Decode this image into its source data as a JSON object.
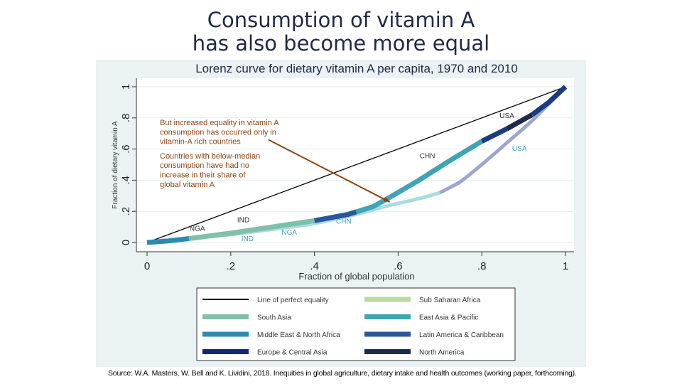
{
  "slide_title_line1": "Consumption of vitamin A",
  "slide_title_line2": "has also become more equal",
  "source": "Source: W.A. Masters, W. Bell and K. Lividini, 2018. Inequities in global agriculture, dietary intake and health outcomes (working paper, forthcoming).",
  "chart_data": {
    "type": "line",
    "title": "Lorenz curve for dietary vitamin A per capita, 1970 and 2010",
    "xlabel": "Fraction of global population",
    "ylabel": "Fraction of dietary vitamin A",
    "xlim": [
      0,
      1
    ],
    "ylim": [
      0,
      1
    ],
    "xticks": [
      "0",
      ".2",
      ".4",
      ".6",
      ".8",
      "1"
    ],
    "yticks": [
      "0",
      ".2",
      ".4",
      ".6",
      ".8",
      "1"
    ],
    "grid": true,
    "legend_placement": "bottom",
    "equality_line": {
      "x": [
        0,
        1
      ],
      "y": [
        0,
        1
      ],
      "color": "#000000"
    },
    "series": [
      {
        "x": [
          0,
          0.05,
          0.1,
          0.2,
          0.3,
          0.4,
          0.48,
          0.54,
          0.58,
          0.65,
          0.72,
          0.8,
          0.86,
          0.92,
          0.96,
          1
        ],
        "y": [
          0,
          0.01,
          0.025,
          0.06,
          0.1,
          0.14,
          0.18,
          0.23,
          0.29,
          0.4,
          0.52,
          0.65,
          0.73,
          0.82,
          0.9,
          1
        ],
        "segments": [
          [
            0,
            0.1,
            "#2b8cb0"
          ],
          [
            0.1,
            0.4,
            "#7fc0aa"
          ],
          [
            0.4,
            0.5,
            "#28579a"
          ],
          [
            0.5,
            0.58,
            "#3fa5b5"
          ],
          [
            0.58,
            0.8,
            "#3fa5b5"
          ],
          [
            0.8,
            0.86,
            "#1b3a80"
          ],
          [
            0.86,
            0.92,
            "#1e2a48"
          ],
          [
            0.92,
            1,
            "#1b3a80"
          ]
        ]
      },
      {
        "x": [
          0,
          0.2,
          0.4,
          0.5,
          0.58,
          0.65,
          0.7,
          0.75,
          0.8,
          0.86,
          0.92,
          1
        ],
        "y": [
          0,
          0.05,
          0.12,
          0.18,
          0.24,
          0.28,
          0.32,
          0.39,
          0.5,
          0.64,
          0.78,
          1
        ],
        "segments": [
          [
            0,
            0.7,
            "#a9dbe0"
          ],
          [
            0.7,
            1,
            "#9ea6cf"
          ]
        ]
      }
    ],
    "annotations": [
      {
        "text": "USA",
        "x": 0.86,
        "y": 0.8,
        "color": "#333333"
      },
      {
        "text": "CHN",
        "x": 0.67,
        "y": 0.54,
        "color": "#333333"
      },
      {
        "text": "IND",
        "x": 0.23,
        "y": 0.13,
        "color": "#333333"
      },
      {
        "text": "NGA",
        "x": 0.12,
        "y": 0.075,
        "color": "#333333"
      },
      {
        "text": "USA",
        "x": 0.89,
        "y": 0.59,
        "color": "#3fa5b5"
      },
      {
        "text": "CHN",
        "x": 0.47,
        "y": 0.12,
        "color": "#3fa5b5"
      },
      {
        "text": "NGA",
        "x": 0.34,
        "y": 0.05,
        "color": "#3fa5b5"
      },
      {
        "text": "IND",
        "x": 0.24,
        "y": 0.01,
        "color": "#3fa5b5"
      }
    ],
    "callouts": [
      "But increased equality in vitamin A",
      "consumption has occurred only in",
      "vitamin-A rich countries",
      "Countries with below-median",
      "consumption have had no",
      "increase in their share of",
      "global vitamin A"
    ],
    "callout_color": "#8b4513",
    "arrow": {
      "from": [
        0.29,
        0.66
      ],
      "to": [
        0.58,
        0.26
      ]
    },
    "legend": [
      {
        "label": "Line of perfect equality",
        "color": "#000000",
        "line": true
      },
      {
        "label": "Sub Saharan Africa",
        "color": "#b9d9a0"
      },
      {
        "label": "South Asia",
        "color": "#7fc0aa"
      },
      {
        "label": "East Asia & Pacific",
        "color": "#3fa5b5"
      },
      {
        "label": "Middle East & North Africa",
        "color": "#2b8cb0"
      },
      {
        "label": "Latin America & Caribbean",
        "color": "#28579a"
      },
      {
        "label": "Europe & Central Asia",
        "color": "#14267a"
      },
      {
        "label": "North America",
        "color": "#1e2a48"
      }
    ]
  }
}
